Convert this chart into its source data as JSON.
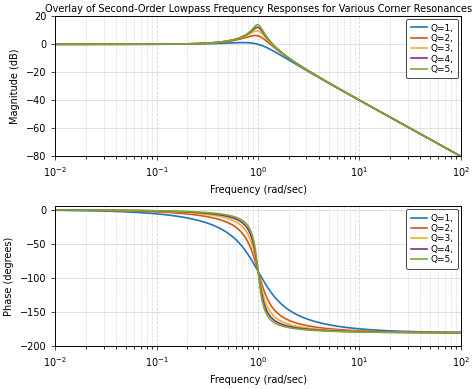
{
  "title": "Overlay of Second-Order Lowpass Frequency Responses for Various Corner Resonances",
  "Q_values": [
    1,
    2,
    3,
    4,
    5
  ],
  "colors": [
    "#1f77b4",
    "#d95319",
    "#edb120",
    "#7e2f8e",
    "#77ac30"
  ],
  "freq_min": 0.01,
  "freq_max": 100,
  "mag_ylim": [
    -80,
    20
  ],
  "mag_yticks": [
    -80,
    -60,
    -40,
    -20,
    0,
    20
  ],
  "phase_ylim": [
    -200,
    5
  ],
  "phase_yticks": [
    -200,
    -150,
    -100,
    -50,
    0
  ],
  "xlabel": "Frequency (rad/sec)",
  "ylabel_mag": "Magnitude (dB)",
  "ylabel_phase": "Phase (degrees)",
  "legend_labels": [
    "Q=1,",
    "Q=2,",
    "Q=3,",
    "Q=4,",
    "Q=5,"
  ],
  "background_color": "#ffffff",
  "grid_color": "#d3d3d3",
  "line_width": 1.2
}
